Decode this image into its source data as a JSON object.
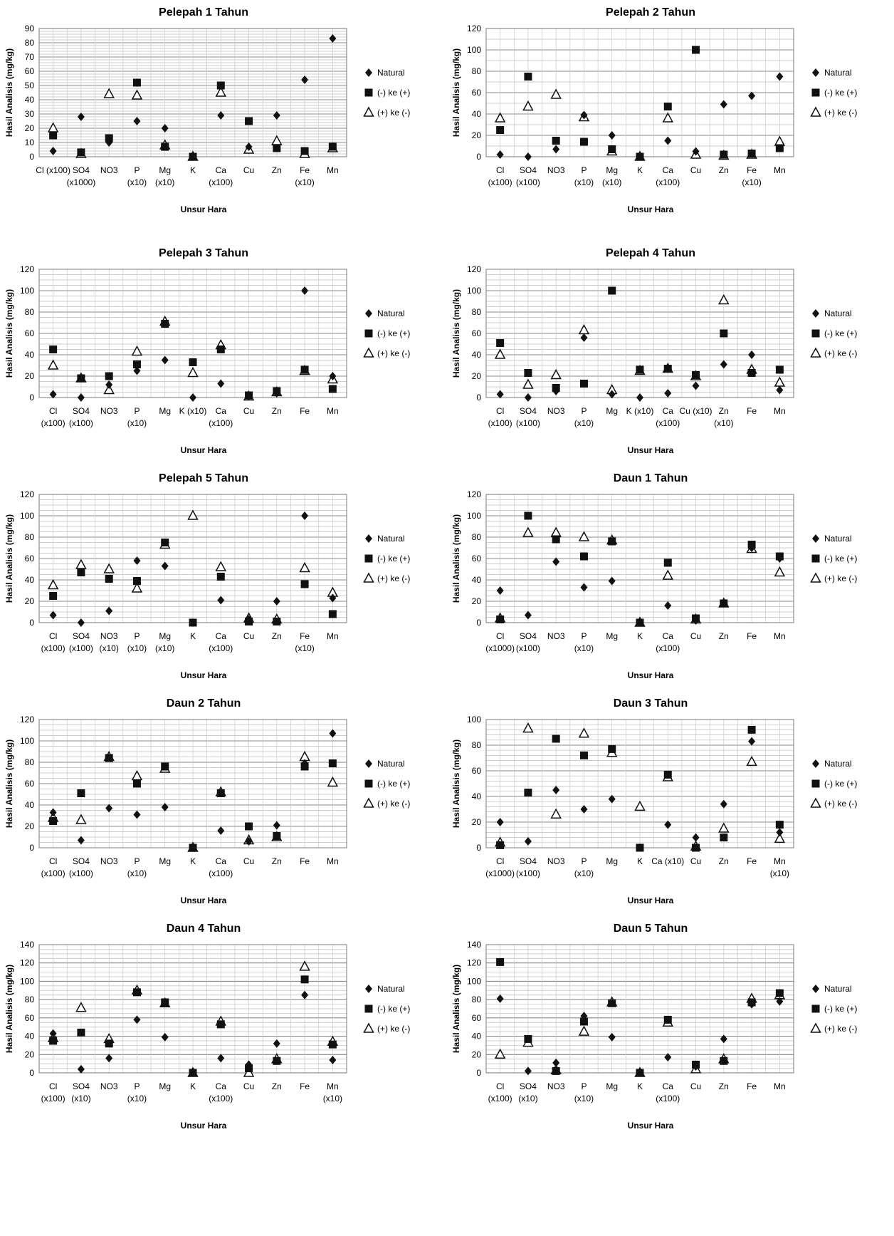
{
  "legend_labels": [
    "Natural",
    "(-) ke (+)",
    "(+) ke (-)"
  ],
  "ylabel": "Hasil Analisis (mg/kg)",
  "xlabel": "Unsur Hara",
  "chart_data": [
    {
      "type": "scatter",
      "title": "Pelepah 1 Tahun",
      "xlabel": "Unsur Hara",
      "ylabel": "Hasil Analisis (mg/kg)",
      "ylim": [
        0,
        90
      ],
      "ymajor": 10,
      "yminor": 2,
      "grid": true,
      "legend": "right",
      "categories": [
        [
          "Cl (x100)"
        ],
        [
          "SO4",
          "(x1000)"
        ],
        [
          "NO3"
        ],
        [
          "P",
          "(x10)"
        ],
        [
          "Mg",
          "(x10)"
        ],
        [
          "K"
        ],
        [
          "Ca",
          "(x100)"
        ],
        [
          "Cu"
        ],
        [
          "Zn"
        ],
        [
          "Fe",
          "(x10)"
        ],
        [
          "Mn"
        ]
      ],
      "series": [
        {
          "name": "Natural",
          "values": [
            4,
            28,
            10,
            25,
            20,
            0,
            29,
            7,
            29,
            54,
            83
          ]
        },
        {
          "name": "(-) ke (+)",
          "values": [
            15,
            3,
            13,
            52,
            7,
            0,
            50,
            25,
            6,
            4,
            7
          ]
        },
        {
          "name": "(+) ke (-)",
          "values": [
            20,
            2,
            44,
            43,
            8,
            0,
            45,
            5,
            11,
            2,
            6
          ]
        }
      ]
    },
    {
      "type": "scatter",
      "title": "Pelepah 2 Tahun",
      "xlabel": "Unsur Hara",
      "ylabel": "Hasil Analisis (mg/kg)",
      "ylim": [
        0,
        120
      ],
      "ymajor": 20,
      "yminor": 10,
      "grid": true,
      "legend": "right",
      "categories": [
        [
          "Cl",
          "(x100)"
        ],
        [
          "SO4",
          "(x100)"
        ],
        [
          "NO3"
        ],
        [
          "P",
          "(x10)"
        ],
        [
          "Mg",
          "(x10)"
        ],
        [
          "K"
        ],
        [
          "Ca",
          "(x100)"
        ],
        [
          "Cu"
        ],
        [
          "Zn"
        ],
        [
          "Fe",
          "(x10)"
        ],
        [
          "Mn"
        ]
      ],
      "series": [
        {
          "name": "Natural",
          "values": [
            2,
            0,
            7,
            39,
            20,
            0,
            15,
            5,
            49,
            57,
            75
          ]
        },
        {
          "name": "(-) ke (+)",
          "values": [
            25,
            75,
            15,
            14,
            7,
            0,
            47,
            100,
            2,
            3,
            8
          ]
        },
        {
          "name": "(+) ke (-)",
          "values": [
            36,
            47,
            58,
            37,
            5,
            0,
            36,
            2,
            1,
            2,
            14
          ]
        }
      ]
    },
    {
      "type": "scatter",
      "title": "Pelepah 3 Tahun",
      "xlabel": "Unsur Hara",
      "ylabel": "Hasil Analisis (mg/kg)",
      "ylim": [
        0,
        120
      ],
      "ymajor": 20,
      "yminor": 5,
      "grid": true,
      "legend": "right",
      "categories": [
        [
          "Cl",
          "(x100)"
        ],
        [
          "SO4",
          "(x100)"
        ],
        [
          "NO3"
        ],
        [
          "P",
          "(x10)"
        ],
        [
          "Mg"
        ],
        [
          "K  (x10)"
        ],
        [
          "Ca",
          "(x100)"
        ],
        [
          "Cu"
        ],
        [
          "Zn"
        ],
        [
          "Fe"
        ],
        [
          "Mn"
        ]
      ],
      "series": [
        {
          "name": "Natural",
          "values": [
            3,
            0,
            12,
            25,
            35,
            0,
            13,
            1,
            4,
            100,
            20
          ]
        },
        {
          "name": "(-) ke (+)",
          "values": [
            45,
            18,
            20,
            31,
            69,
            33,
            45,
            2,
            6,
            26,
            8
          ]
        },
        {
          "name": "(+) ke (-)",
          "values": [
            30,
            18,
            7,
            43,
            71,
            23,
            49,
            1,
            5,
            25,
            17
          ]
        }
      ]
    },
    {
      "type": "scatter",
      "title": "Pelepah 4 Tahun",
      "xlabel": "Unsur Hara",
      "ylabel": "Hasil Analisis (mg/kg)",
      "ylim": [
        0,
        120
      ],
      "ymajor": 20,
      "yminor": 5,
      "grid": true,
      "legend": "right",
      "categories": [
        [
          "Cl",
          "(x100)"
        ],
        [
          "SO4",
          "(x100)"
        ],
        [
          "NO3"
        ],
        [
          "P",
          "(x10)"
        ],
        [
          "Mg"
        ],
        [
          "K  (x10)"
        ],
        [
          "Ca",
          "(x100)"
        ],
        [
          "Cu (x10)"
        ],
        [
          "Zn",
          "(x10)"
        ],
        [
          "Fe"
        ],
        [
          "Mn"
        ]
      ],
      "series": [
        {
          "name": "Natural",
          "values": [
            3,
            0,
            6,
            56,
            3,
            0,
            4,
            11,
            31,
            40,
            7
          ]
        },
        {
          "name": "(-) ke (+)",
          "values": [
            51,
            23,
            9,
            13,
            100,
            26,
            27,
            21,
            60,
            23,
            26
          ]
        },
        {
          "name": "(+) ke (-)",
          "values": [
            40,
            12,
            21,
            63,
            7,
            25,
            27,
            20,
            91,
            26,
            14
          ]
        }
      ]
    },
    {
      "type": "scatter",
      "title": "Pelepah 5 Tahun",
      "xlabel": "Unsur Hara",
      "ylabel": "Hasil Analisis (mg/kg)",
      "ylim": [
        0,
        120
      ],
      "ymajor": 20,
      "yminor": 5,
      "grid": true,
      "legend": "right",
      "categories": [
        [
          "Cl",
          "(x100)"
        ],
        [
          "SO4",
          "(x100)"
        ],
        [
          "NO3",
          "(x10)"
        ],
        [
          "P",
          "(x10)"
        ],
        [
          "Mg",
          "(x10)"
        ],
        [
          "K"
        ],
        [
          "Ca",
          "(x100)"
        ],
        [
          "Cu"
        ],
        [
          "Zn"
        ],
        [
          "Fe",
          "(x10)"
        ],
        [
          "Mn"
        ]
      ],
      "series": [
        {
          "name": "Natural",
          "values": [
            7,
            0,
            11,
            58,
            53,
            0,
            21,
            3,
            20,
            100,
            23
          ]
        },
        {
          "name": "(-) ke (+)",
          "values": [
            25,
            47,
            41,
            39,
            75,
            0,
            43,
            1,
            1,
            36,
            8
          ]
        },
        {
          "name": "(+) ke (-)",
          "values": [
            35,
            54,
            50,
            32,
            73,
            100,
            52,
            4,
            3,
            51,
            28
          ]
        }
      ]
    },
    {
      "type": "scatter",
      "title": "Daun 1 Tahun",
      "xlabel": "Unsur Hara",
      "ylabel": "Hasil Analisis (mg/kg)",
      "ylim": [
        0,
        120
      ],
      "ymajor": 20,
      "yminor": 5,
      "grid": true,
      "legend": "right",
      "categories": [
        [
          "Cl",
          "(x1000)"
        ],
        [
          "SO4",
          "(x100)"
        ],
        [
          "NO3"
        ],
        [
          "P",
          "(x10)"
        ],
        [
          "Mg"
        ],
        [
          "K"
        ],
        [
          "Ca",
          "(x100)"
        ],
        [
          "Cu"
        ],
        [
          "Zn"
        ],
        [
          "Fe"
        ],
        [
          "Mn"
        ]
      ],
      "series": [
        {
          "name": "Natural",
          "values": [
            30,
            7,
            57,
            33,
            39,
            0,
            16,
            2,
            18,
            70,
            60
          ]
        },
        {
          "name": "(-) ke (+)",
          "values": [
            3,
            100,
            78,
            62,
            76,
            0,
            56,
            4,
            18,
            73,
            62
          ]
        },
        {
          "name": "(+) ke (-)",
          "values": [
            4,
            84,
            84,
            80,
            77,
            0,
            44,
            3,
            18,
            69,
            47
          ]
        }
      ]
    },
    {
      "type": "scatter",
      "title": "Daun 2 Tahun",
      "xlabel": "Unsur Hara",
      "ylabel": "Hasil Analisis (mg/kg)",
      "ylim": [
        0,
        120
      ],
      "ymajor": 20,
      "yminor": 5,
      "grid": true,
      "legend": "right",
      "categories": [
        [
          "Cl",
          "(x100)"
        ],
        [
          "SO4",
          "(x100)"
        ],
        [
          "NO3"
        ],
        [
          "P",
          "(x10)"
        ],
        [
          "Mg"
        ],
        [
          "K"
        ],
        [
          "Ca",
          "(x100)"
        ],
        [
          "Cu"
        ],
        [
          "Zn"
        ],
        [
          "Fe"
        ],
        [
          "Mn"
        ]
      ],
      "series": [
        {
          "name": "Natural",
          "values": [
            33,
            7,
            37,
            31,
            38,
            0,
            16,
            6,
            21,
            79,
            107
          ]
        },
        {
          "name": "(-) ke (+)",
          "values": [
            25,
            51,
            84,
            60,
            76,
            0,
            51,
            20,
            11,
            76,
            79
          ]
        },
        {
          "name": "(+) ke (-)",
          "values": [
            28,
            26,
            85,
            67,
            74,
            0,
            52,
            7,
            10,
            85,
            61
          ]
        }
      ]
    },
    {
      "type": "scatter",
      "title": "Daun 3 Tahun",
      "xlabel": "Unsur Hara",
      "ylabel": "Hasil Analisis (mg/kg)",
      "ylim": [
        0,
        100
      ],
      "ymajor": 20,
      "yminor": 4,
      "grid": true,
      "legend": "right",
      "categories": [
        [
          "Cl",
          "(x1000)"
        ],
        [
          "SO4",
          "(x100)"
        ],
        [
          "NO3"
        ],
        [
          "P",
          "(x10)"
        ],
        [
          "Mg"
        ],
        [
          "K"
        ],
        [
          "Ca (x10)"
        ],
        [
          "Cu"
        ],
        [
          "Zn"
        ],
        [
          "Fe"
        ],
        [
          "Mn",
          "(x10)"
        ]
      ],
      "series": [
        {
          "name": "Natural",
          "values": [
            20,
            5,
            45,
            30,
            38,
            0,
            18,
            8,
            34,
            83,
            12
          ]
        },
        {
          "name": "(-) ke (+)",
          "values": [
            2,
            43,
            85,
            72,
            77,
            0,
            57,
            0,
            8,
            92,
            18
          ]
        },
        {
          "name": "(+) ke (-)",
          "values": [
            4,
            93,
            26,
            89,
            74,
            32,
            55,
            1,
            15,
            67,
            7
          ]
        }
      ]
    },
    {
      "type": "scatter",
      "title": "Daun 4 Tahun",
      "xlabel": "Unsur Hara",
      "ylabel": "Hasil Analisis (mg/kg)",
      "ylim": [
        0,
        140
      ],
      "ymajor": 20,
      "yminor": 5,
      "grid": true,
      "legend": "right",
      "categories": [
        [
          "Cl",
          "(x100)"
        ],
        [
          "SO4",
          "(x10)"
        ],
        [
          "NO3"
        ],
        [
          "P",
          "(x10)"
        ],
        [
          "Mg"
        ],
        [
          "K"
        ],
        [
          "Ca",
          "(x100)"
        ],
        [
          "Cu"
        ],
        [
          "Zn"
        ],
        [
          "Fe"
        ],
        [
          "Mn",
          "(x10)"
        ]
      ],
      "series": [
        {
          "name": "Natural",
          "values": [
            43,
            4,
            16,
            58,
            39,
            0,
            16,
            9,
            32,
            85,
            14
          ]
        },
        {
          "name": "(-) ke (+)",
          "values": [
            35,
            44,
            32,
            88,
            77,
            0,
            53,
            5,
            13,
            102,
            31
          ]
        },
        {
          "name": "(+) ke (-)",
          "values": [
            38,
            71,
            37,
            90,
            76,
            0,
            56,
            0,
            15,
            116,
            34
          ]
        }
      ]
    },
    {
      "type": "scatter",
      "title": "Daun 5 Tahun",
      "xlabel": "Unsur Hara",
      "ylabel": "Hasil Analisis (mg/kg)",
      "ylim": [
        0,
        140
      ],
      "ymajor": 20,
      "yminor": 5,
      "grid": true,
      "legend": "right",
      "categories": [
        [
          "Cl",
          "(x100)"
        ],
        [
          "SO4",
          "(x10)"
        ],
        [
          "NO3"
        ],
        [
          "P",
          "(x10)"
        ],
        [
          "Mg"
        ],
        [
          "K"
        ],
        [
          "Ca",
          "(x100)"
        ],
        [
          "Cu"
        ],
        [
          "Zn"
        ],
        [
          "Fe"
        ],
        [
          "Mn"
        ]
      ],
      "series": [
        {
          "name": "Natural",
          "values": [
            81,
            2,
            11,
            62,
            39,
            0,
            17,
            7,
            37,
            75,
            78
          ]
        },
        {
          "name": "(-) ke (+)",
          "values": [
            121,
            37,
            2,
            56,
            76,
            0,
            58,
            9,
            13,
            77,
            87
          ]
        },
        {
          "name": "(+) ke (-)",
          "values": [
            20,
            33,
            3,
            45,
            77,
            0,
            55,
            4,
            15,
            81,
            85
          ]
        }
      ]
    }
  ]
}
